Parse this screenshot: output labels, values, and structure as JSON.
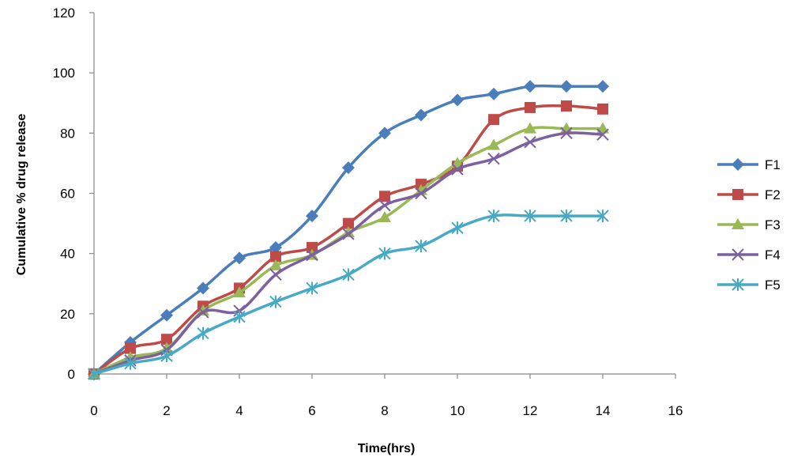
{
  "chart_data": {
    "type": "line",
    "title": "",
    "xlabel": "Time(hrs)",
    "ylabel": "Cumulative % drug release",
    "xlim": [
      0,
      16
    ],
    "ylim": [
      0,
      120
    ],
    "xticks": [
      0,
      2,
      4,
      6,
      8,
      10,
      12,
      14,
      16
    ],
    "yticks": [
      0,
      20,
      40,
      60,
      80,
      100,
      120
    ],
    "grid": false,
    "legend_position": "right",
    "x": [
      0,
      1,
      2,
      3,
      4,
      5,
      6,
      7,
      8,
      9,
      10,
      11,
      12,
      13,
      14
    ],
    "series": [
      {
        "name": "F1",
        "color": "#4A7EBB",
        "marker": "diamond",
        "values": [
          0,
          10.5,
          19.5,
          28.5,
          38.5,
          42,
          52.5,
          68.5,
          80,
          86,
          91,
          93,
          95.5,
          95.5,
          95.5
        ]
      },
      {
        "name": "F2",
        "color": "#BE4B48",
        "marker": "square",
        "values": [
          0,
          8.5,
          11.5,
          22.5,
          28.5,
          39,
          42,
          50,
          59,
          63,
          69,
          84.5,
          88.5,
          89,
          88
        ]
      },
      {
        "name": "F3",
        "color": "#98B954",
        "marker": "triangle",
        "values": [
          0,
          5.5,
          8.5,
          21,
          27,
          36,
          39.5,
          47,
          52,
          61,
          70,
          76,
          81.5,
          81.5,
          81.5
        ]
      },
      {
        "name": "F4",
        "color": "#7D60A0",
        "marker": "x",
        "values": [
          0,
          4.5,
          8,
          20.5,
          21,
          33,
          39.5,
          46.5,
          56,
          60,
          68,
          71.5,
          77,
          80,
          79.5
        ]
      },
      {
        "name": "F5",
        "color": "#46AAC5",
        "marker": "star",
        "values": [
          0,
          3.5,
          6,
          13.5,
          19,
          24,
          28.5,
          33,
          40,
          42.5,
          48.5,
          52.5,
          52.5,
          52.5,
          52.5
        ]
      }
    ]
  }
}
